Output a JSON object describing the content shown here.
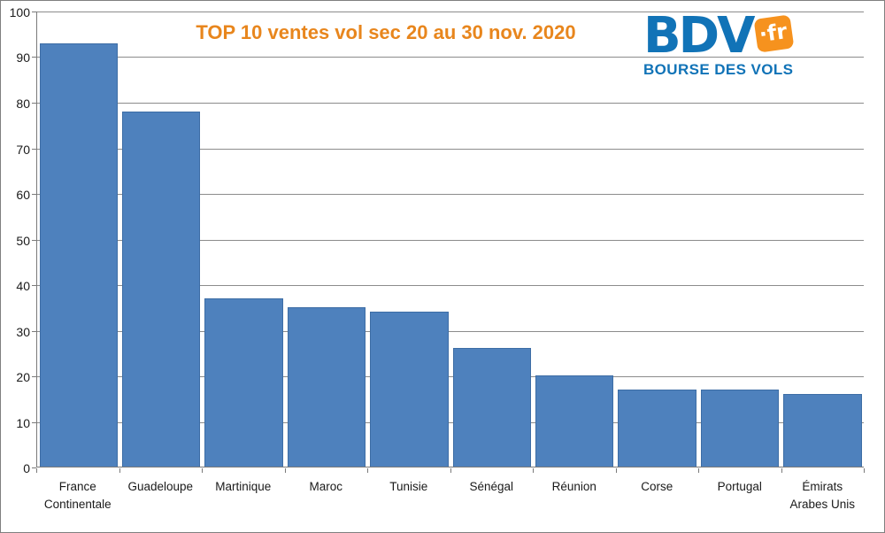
{
  "logo": {
    "brand": "BDV",
    "tld": "·fr",
    "tagline": "BOURSE DES VOLS"
  },
  "chart_data": {
    "type": "bar",
    "title": "TOP 10 ventes vol sec 20 au 30 nov. 2020",
    "categories": [
      "France Continentale",
      "Guadeloupe",
      "Martinique",
      "Maroc",
      "Tunisie",
      "Sénégal",
      "Réunion",
      "Corse",
      "Portugal",
      "Émirats Arabes Unis"
    ],
    "values": [
      93,
      78,
      37,
      35,
      34,
      26,
      20,
      17,
      17,
      16
    ],
    "xlabel": "",
    "ylabel": "",
    "ylim": [
      0,
      100
    ],
    "yticks": [
      0,
      10,
      20,
      30,
      40,
      50,
      60,
      70,
      80,
      90,
      100
    ],
    "grid": true,
    "legend": false,
    "colors": {
      "bar_fill": "#4e81bd",
      "bar_border": "#3d6da5",
      "gridline": "#8c8c8c",
      "axis": "#7a7a7a",
      "title": "#e8861d",
      "logo_blue": "#1173b7",
      "logo_orange": "#f6921e",
      "label_text": "#1a1a1a"
    }
  }
}
